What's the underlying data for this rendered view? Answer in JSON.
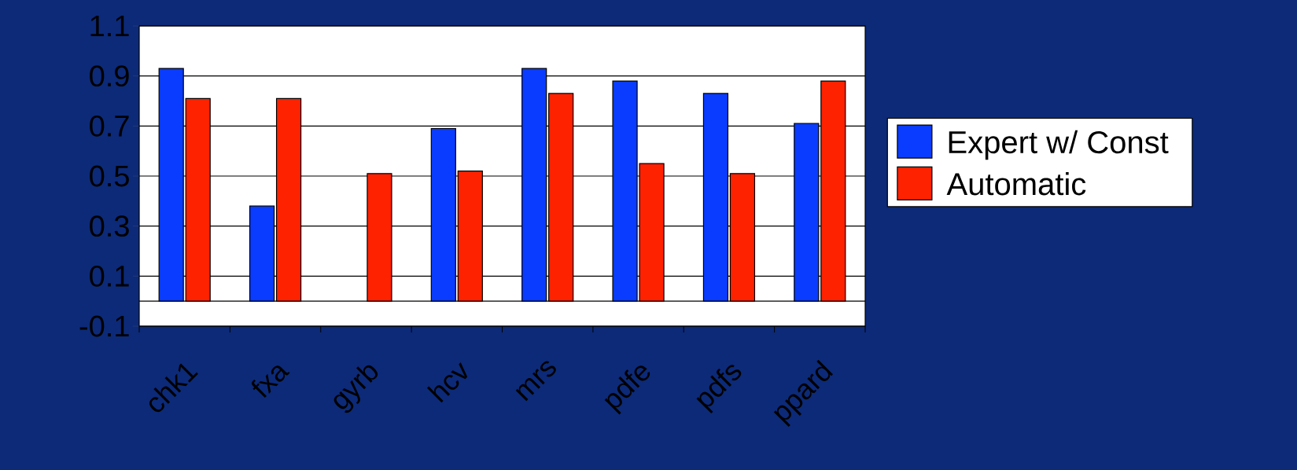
{
  "chart_data": {
    "type": "bar",
    "categories": [
      "chk1",
      "fxa",
      "gyrb",
      "hcv",
      "mrs",
      "pdfe",
      "pdfs",
      "ppard"
    ],
    "series": [
      {
        "name": "Expert w/ Const",
        "color": "#0a3cff",
        "values": [
          0.93,
          0.38,
          null,
          0.69,
          0.93,
          0.88,
          0.83,
          0.71
        ]
      },
      {
        "name": "Automatic",
        "color": "#ff2200",
        "values": [
          0.81,
          0.81,
          0.51,
          0.52,
          0.83,
          0.55,
          0.51,
          0.88
        ]
      }
    ],
    "ylim": [
      -0.1,
      1.1
    ],
    "yticks": [
      -0.1,
      0.1,
      0.3,
      0.5,
      0.7,
      0.9,
      1.1
    ],
    "grid": "y",
    "legend": "right"
  }
}
